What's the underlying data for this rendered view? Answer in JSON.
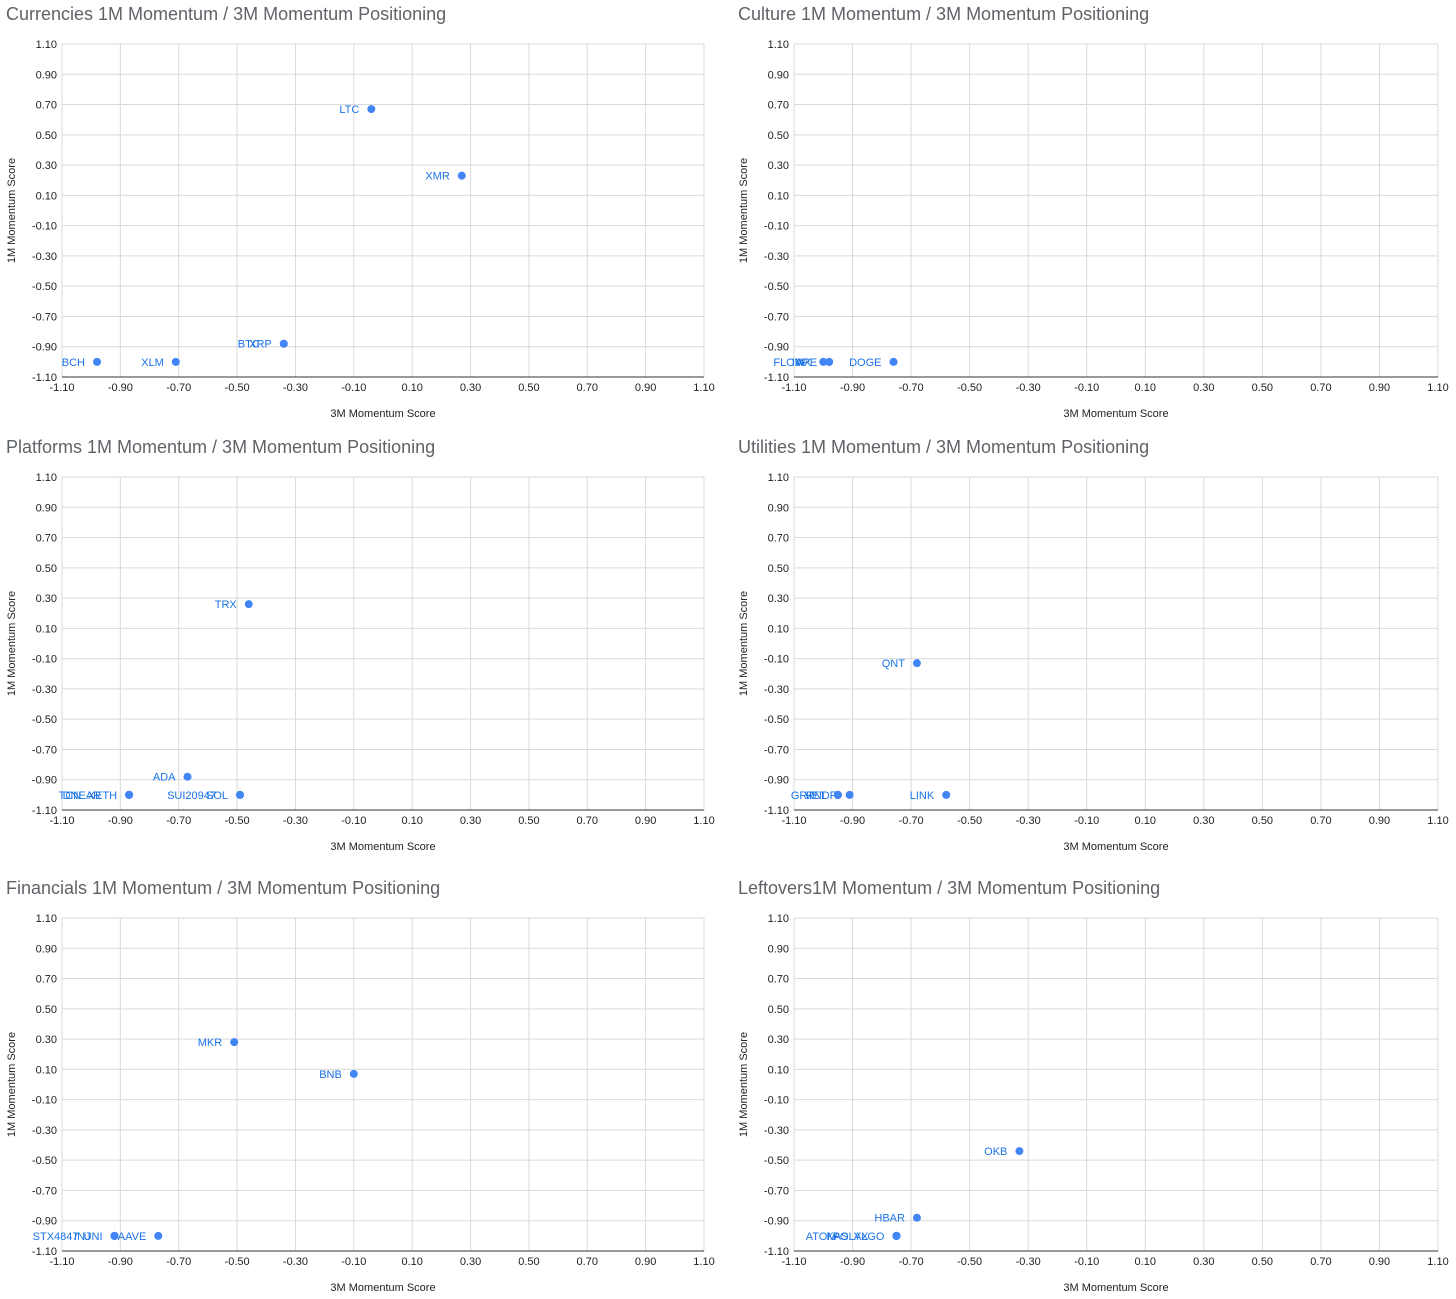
{
  "chart_data": [
    {
      "type": "scatter",
      "title": "Currencies 1M Momentum / 3M Momentum Positioning",
      "xlabel": "3M Momentum Score",
      "ylabel": "1M Momentum Score",
      "xlim": [
        -1.1,
        1.1
      ],
      "ylim": [
        -1.1,
        1.1
      ],
      "ticks": [
        "-1.10",
        "-0.90",
        "-0.70",
        "-0.50",
        "-0.30",
        "-0.10",
        "0.10",
        "0.30",
        "0.50",
        "0.70",
        "0.90",
        "1.10"
      ],
      "grid": true,
      "point_color": "#4285f4",
      "points": [
        {
          "label": "LTC",
          "x": -0.04,
          "y": 0.67
        },
        {
          "label": "XMR",
          "x": 0.27,
          "y": 0.23
        },
        {
          "label": "BTC",
          "x": -0.34,
          "y": -0.88
        },
        {
          "label": "XRP",
          "x": -0.34,
          "y": -0.88
        },
        {
          "label": "BCH",
          "x": -0.98,
          "y": -1.0
        },
        {
          "label": "XLM",
          "x": -0.71,
          "y": -1.0
        }
      ]
    },
    {
      "type": "scatter",
      "title": "Culture 1M Momentum / 3M Momentum Positioning",
      "xlabel": "3M Momentum Score",
      "ylabel": "1M Momentum Score",
      "xlim": [
        -1.1,
        1.1
      ],
      "ylim": [
        -1.1,
        1.1
      ],
      "ticks": [
        "-1.10",
        "-0.90",
        "-0.70",
        "-0.50",
        "-0.30",
        "-0.10",
        "0.10",
        "0.30",
        "0.50",
        "0.70",
        "0.90",
        "1.10"
      ],
      "grid": true,
      "point_color": "#4285f4",
      "points": [
        {
          "label": "IMX",
          "x": -1.0,
          "y": -1.0
        },
        {
          "label": "FLOW",
          "x": -0.98,
          "y": -1.0
        },
        {
          "label": "APE",
          "x": -0.98,
          "y": -1.0
        },
        {
          "label": "DOGE",
          "x": -0.76,
          "y": -1.0
        }
      ]
    },
    {
      "type": "scatter",
      "title": "Platforms 1M Momentum / 3M Momentum Positioning",
      "xlabel": "3M Momentum Score",
      "ylabel": "1M Momentum Score",
      "xlim": [
        -1.1,
        1.1
      ],
      "ylim": [
        -1.1,
        1.1
      ],
      "ticks": [
        "-1.10",
        "-0.90",
        "-0.70",
        "-0.50",
        "-0.30",
        "-0.10",
        "0.10",
        "0.30",
        "0.50",
        "0.70",
        "0.90",
        "1.10"
      ],
      "grid": true,
      "point_color": "#4285f4",
      "points": [
        {
          "label": "TRX",
          "x": -0.46,
          "y": 0.26
        },
        {
          "label": "ADA",
          "x": -0.67,
          "y": -0.88
        },
        {
          "label": "TCN",
          "x": -0.87,
          "y": -1.0
        },
        {
          "label": "DNEAR",
          "x": -0.87,
          "y": -1.0
        },
        {
          "label": "XETH",
          "x": -0.87,
          "y": -1.0
        },
        {
          "label": "SUI20947",
          "x": -0.49,
          "y": -1.0
        },
        {
          "label": "SOL",
          "x": -0.49,
          "y": -1.0
        }
      ]
    },
    {
      "type": "scatter",
      "title": "Utilities 1M Momentum / 3M Momentum Positioning",
      "xlabel": "3M Momentum Score",
      "ylabel": "1M Momentum Score",
      "xlim": [
        -1.1,
        1.1
      ],
      "ylim": [
        -1.1,
        1.1
      ],
      "ticks": [
        "-1.10",
        "-0.90",
        "-0.70",
        "-0.50",
        "-0.30",
        "-0.10",
        "0.10",
        "0.30",
        "0.50",
        "0.70",
        "0.90",
        "1.10"
      ],
      "grid": true,
      "point_color": "#4285f4",
      "points": [
        {
          "label": "QNT",
          "x": -0.68,
          "y": -0.13
        },
        {
          "label": "GRT",
          "x": -0.95,
          "y": -1.0
        },
        {
          "label": "VET",
          "x": -0.95,
          "y": -1.0
        },
        {
          "label": "RNDR",
          "x": -0.91,
          "y": -1.0
        },
        {
          "label": "LINK",
          "x": -0.58,
          "y": -1.0
        }
      ]
    },
    {
      "type": "scatter",
      "title": "Financials 1M Momentum / 3M Momentum Positioning",
      "xlabel": "3M Momentum Score",
      "ylabel": "1M Momentum Score",
      "xlim": [
        -1.1,
        1.1
      ],
      "ylim": [
        -1.1,
        1.1
      ],
      "ticks": [
        "-1.10",
        "-0.90",
        "-0.70",
        "-0.50",
        "-0.30",
        "-0.10",
        "0.10",
        "0.30",
        "0.50",
        "0.70",
        "0.90",
        "1.10"
      ],
      "grid": true,
      "point_color": "#4285f4",
      "points": [
        {
          "label": "MKR",
          "x": -0.51,
          "y": 0.28
        },
        {
          "label": "BNB",
          "x": -0.1,
          "y": 0.07
        },
        {
          "label": "STX4847",
          "x": -0.92,
          "y": -1.0
        },
        {
          "label": "INJ",
          "x": -0.92,
          "y": -1.0
        },
        {
          "label": "UNI",
          "x": -0.92,
          "y": -1.0
        },
        {
          "label": "AAVE",
          "x": -0.77,
          "y": -1.0
        }
      ]
    },
    {
      "type": "scatter",
      "title": "Leftovers1M Momentum / 3M Momentum Positioning",
      "xlabel": "3M Momentum Score",
      "ylabel": "1M Momentum Score",
      "xlim": [
        -1.1,
        1.1
      ],
      "ylim": [
        -1.1,
        1.1
      ],
      "ticks": [
        "-1.10",
        "-0.90",
        "-0.70",
        "-0.50",
        "-0.30",
        "-0.10",
        "0.10",
        "0.30",
        "0.50",
        "0.70",
        "0.90",
        "1.10"
      ],
      "grid": true,
      "point_color": "#4285f4",
      "points": [
        {
          "label": "OKB",
          "x": -0.33,
          "y": -0.44
        },
        {
          "label": "HBAR",
          "x": -0.68,
          "y": -0.88
        },
        {
          "label": "ATOM",
          "x": -0.75,
          "y": -1.0
        },
        {
          "label": "KAS",
          "x": -0.75,
          "y": -1.0
        },
        {
          "label": "POLYX",
          "x": -0.75,
          "y": -1.0
        },
        {
          "label": "ALGO",
          "x": -0.75,
          "y": -1.0
        }
      ]
    }
  ]
}
